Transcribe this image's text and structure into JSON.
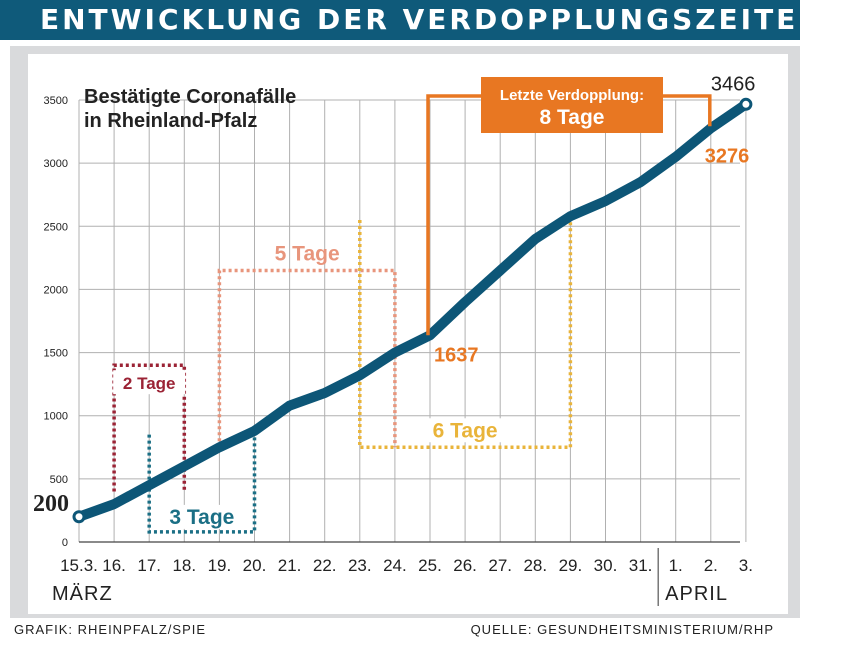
{
  "header": {
    "title": "ENTWICKLUNG DER VERDOPPLUNGSZEITEN"
  },
  "footer": {
    "credit": "GRAFIK: RHEINPFALZ/SPIE",
    "source": "QUELLE: GESUNDHEITSMINISTERIUM/RHP"
  },
  "colors": {
    "header_bg": "#0f5a7a",
    "line": "#0d5677",
    "orange": "#e87722",
    "salmon": "#e8957c",
    "red": "#9b2335",
    "yellow": "#e9b43a",
    "teal": "#1b6f85",
    "grid": "#b0b0b0"
  },
  "chart_data": {
    "type": "line",
    "title": "Bestätigte Coronafälle\nin Rheinland-Pfalz",
    "xlabel": "",
    "ylabel": "",
    "month_labels": [
      "MÄRZ",
      "APRIL"
    ],
    "categories": [
      "15.3.",
      "16.",
      "17.",
      "18.",
      "19.",
      "20.",
      "21.",
      "22.",
      "23.",
      "24.",
      "25.",
      "26.",
      "27.",
      "28.",
      "29.",
      "30.",
      "31.",
      "1.",
      "2.",
      "3."
    ],
    "values": [
      200,
      300,
      450,
      600,
      750,
      880,
      1080,
      1180,
      1320,
      1500,
      1637,
      1900,
      2150,
      2400,
      2580,
      2700,
      2850,
      3050,
      3276,
      3466
    ],
    "ylim": [
      0,
      3500
    ],
    "yticks": [
      0,
      500,
      1000,
      1500,
      2000,
      2500,
      3000,
      3500
    ],
    "grid": true,
    "point_labels": [
      {
        "label": "200",
        "index": 0,
        "value": 200
      },
      {
        "label": "1637",
        "index": 10,
        "value": 1637
      },
      {
        "label": "3276",
        "index": 18,
        "value": 3276
      },
      {
        "label": "3466",
        "index": 19,
        "value": 3466
      }
    ],
    "doubling_periods": [
      {
        "label": "2 Tage",
        "color": "red",
        "from_index": 1,
        "to_index": 3,
        "value_low": 400,
        "value_high": 1400,
        "open": "bottom"
      },
      {
        "label": "3 Tage",
        "color": "teal",
        "from_index": 2,
        "to_index": 5,
        "value_low": 80,
        "value_high": 850,
        "open": "top"
      },
      {
        "label": "5 Tage",
        "color": "salmon",
        "from_index": 4,
        "to_index": 9,
        "value_low": 750,
        "value_high": 2150,
        "open": "bottom"
      },
      {
        "label": "6 Tage",
        "color": "yellow",
        "from_index": 8,
        "to_index": 14,
        "value_low": 750,
        "value_high": 2550,
        "open": "top"
      }
    ],
    "annotation": {
      "label": "Letzte Verdopplung:",
      "value_label": "8 Tage",
      "from_index": 10,
      "to_index": 18,
      "color": "orange"
    }
  }
}
